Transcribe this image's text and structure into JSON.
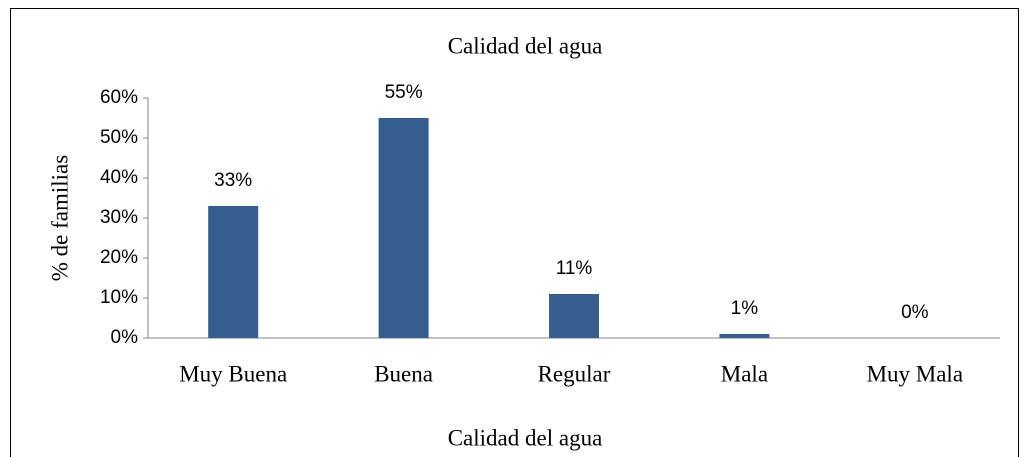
{
  "chart_data": {
    "type": "bar",
    "title": "Calidad del agua",
    "x_label": "Calidad del agua",
    "y_label": "% de familias",
    "categories": [
      "Muy Buena",
      "Buena",
      "Regular",
      "Mala",
      "Muy Mala"
    ],
    "values": [
      33,
      55,
      11,
      1,
      0
    ],
    "value_labels": [
      "33%",
      "55%",
      "11%",
      "1%",
      "0%"
    ],
    "color": "#355e8e",
    "ylim": [
      0,
      60
    ],
    "yticks": [
      {
        "value": 0,
        "label": "0%"
      },
      {
        "value": 10,
        "label": "10%"
      },
      {
        "value": 20,
        "label": "20%"
      },
      {
        "value": 30,
        "label": "30%"
      },
      {
        "value": 40,
        "label": "40%"
      },
      {
        "value": 50,
        "label": "50%"
      },
      {
        "value": 60,
        "label": "60%"
      }
    ],
    "grid": false
  }
}
